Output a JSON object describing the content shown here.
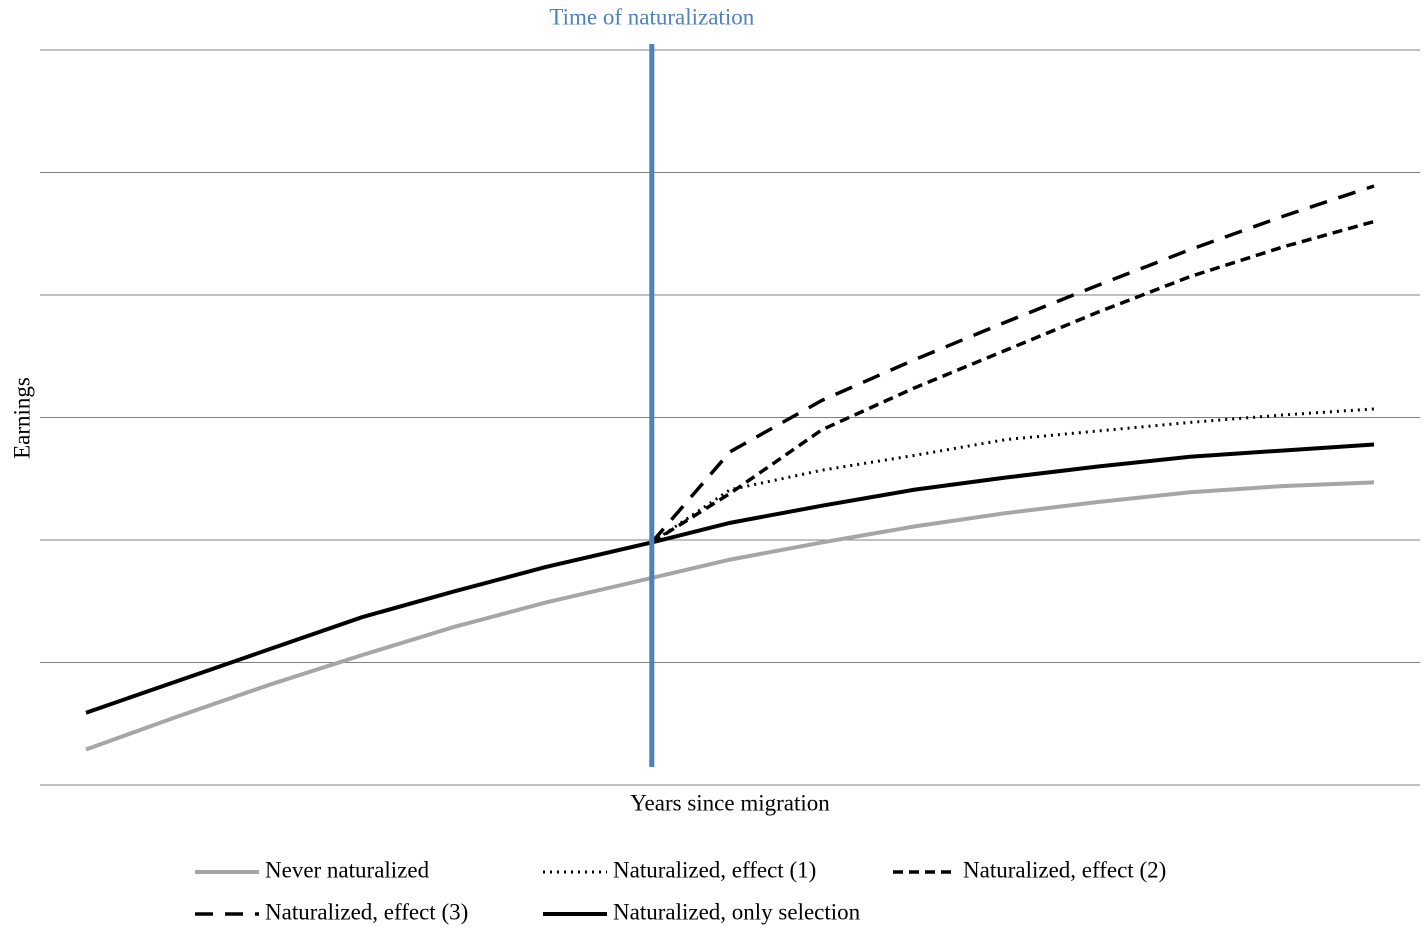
{
  "chart_data": {
    "type": "line",
    "x_label": "Years since migration",
    "y_label": "Earnings",
    "x": [
      1,
      3,
      5,
      7,
      9,
      11,
      13.3,
      15,
      17,
      19,
      21,
      23,
      25,
      27,
      29
    ],
    "xlim": [
      0,
      30
    ],
    "ylim": [
      0,
      6
    ],
    "yticks": [
      0,
      1,
      2,
      3,
      4,
      5,
      6
    ],
    "grid": true,
    "legend": "bottom",
    "annotation": {
      "text": "Time of naturalization",
      "x": 13.3,
      "color": "#4f81bd"
    },
    "series": [
      {
        "name": "Never naturalized",
        "color": "#a6a6a6",
        "line_style": "solid",
        "values": [
          0.29,
          0.56,
          0.82,
          1.06,
          1.29,
          1.49,
          1.69,
          1.84,
          1.98,
          2.11,
          2.22,
          2.31,
          2.39,
          2.44,
          2.47
        ]
      },
      {
        "name": "Naturalized, effect (1)",
        "color": "#000000",
        "line_style": "dotted",
        "values": [
          null,
          null,
          null,
          null,
          null,
          null,
          1.98,
          2.41,
          2.57,
          2.69,
          2.82,
          2.89,
          2.96,
          3.02,
          3.07
        ]
      },
      {
        "name": "Naturalized, effect (2)",
        "color": "#000000",
        "line_style": "dashed",
        "values": [
          null,
          null,
          null,
          null,
          null,
          null,
          1.98,
          2.38,
          2.9,
          3.24,
          3.55,
          3.86,
          4.15,
          4.39,
          4.6
        ]
      },
      {
        "name": "Naturalized, effect (3)",
        "color": "#000000",
        "line_style": "longdash",
        "values": [
          null,
          null,
          null,
          null,
          null,
          null,
          1.98,
          2.72,
          3.14,
          3.47,
          3.78,
          4.08,
          4.37,
          4.64,
          4.89
        ]
      },
      {
        "name": "Naturalized, only selection",
        "color": "#000000",
        "line_style": "solid",
        "values": [
          0.59,
          0.85,
          1.11,
          1.37,
          1.58,
          1.78,
          1.98,
          2.14,
          2.28,
          2.41,
          2.51,
          2.6,
          2.68,
          2.73,
          2.78
        ]
      }
    ]
  }
}
